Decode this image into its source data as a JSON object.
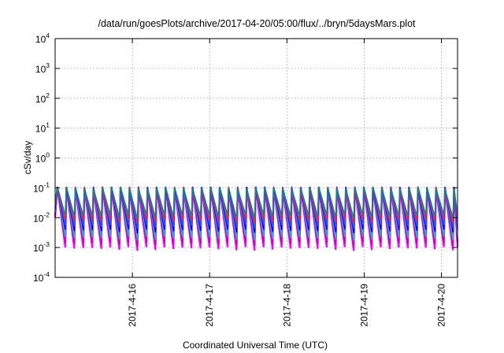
{
  "chart_data": {
    "type": "line",
    "title": "/data/run/goesPlots/archive/2017-04-20/05:00/flux/../bryn/5daysMars.plot",
    "xlabel": "Coordinated Universal Time (UTC)",
    "ylabel": "cSv/day",
    "yscale": "log",
    "ylim": [
      0.0001,
      10000
    ],
    "y_ticks": [
      {
        "value": 0.0001,
        "base": "10",
        "exp": "-4"
      },
      {
        "value": 0.001,
        "base": "10",
        "exp": "-3"
      },
      {
        "value": 0.01,
        "base": "10",
        "exp": "-2"
      },
      {
        "value": 0.1,
        "base": "10",
        "exp": "-1"
      },
      {
        "value": 1,
        "base": "10",
        "exp": "0"
      },
      {
        "value": 10,
        "base": "10",
        "exp": "1"
      },
      {
        "value": 100,
        "base": "10",
        "exp": "2"
      },
      {
        "value": 1000,
        "base": "10",
        "exp": "3"
      },
      {
        "value": 10000,
        "base": "10",
        "exp": "4"
      }
    ],
    "xlim": [
      "2017-04-15T00:00",
      "2017-04-20T05:00"
    ],
    "x_ticks": [
      {
        "value": "2017-04-16T00:00",
        "label": "2017-4-16"
      },
      {
        "value": "2017-04-17T00:00",
        "label": "2017-4-17"
      },
      {
        "value": "2017-04-18T00:00",
        "label": "2017-4-18"
      },
      {
        "value": "2017-04-19T00:00",
        "label": "2017-4-19"
      },
      {
        "value": "2017-04-20T00:00",
        "label": "2017-4-20"
      }
    ],
    "grid": true,
    "legend": "none",
    "series_colors": [
      "#ff00ff",
      "#cc00cc",
      "#00c8c8",
      "#0000ff",
      "#3050ff",
      "#ff2020",
      "#008c8c"
    ],
    "pattern": {
      "period_hours": 2.8,
      "peak_value": 0.11,
      "trough_values": [
        0.0009,
        0.0013,
        0.002,
        0.0035,
        0.005,
        0.0075,
        0.011
      ]
    }
  }
}
